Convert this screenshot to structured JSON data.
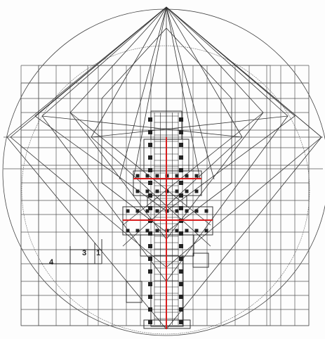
{
  "diagram": {
    "labels": {
      "four": "4",
      "three": "3",
      "one": "1"
    },
    "colors": {
      "ink": "#2a2a2a",
      "grid": "#555555",
      "accent": "#d81e1e"
    }
  }
}
